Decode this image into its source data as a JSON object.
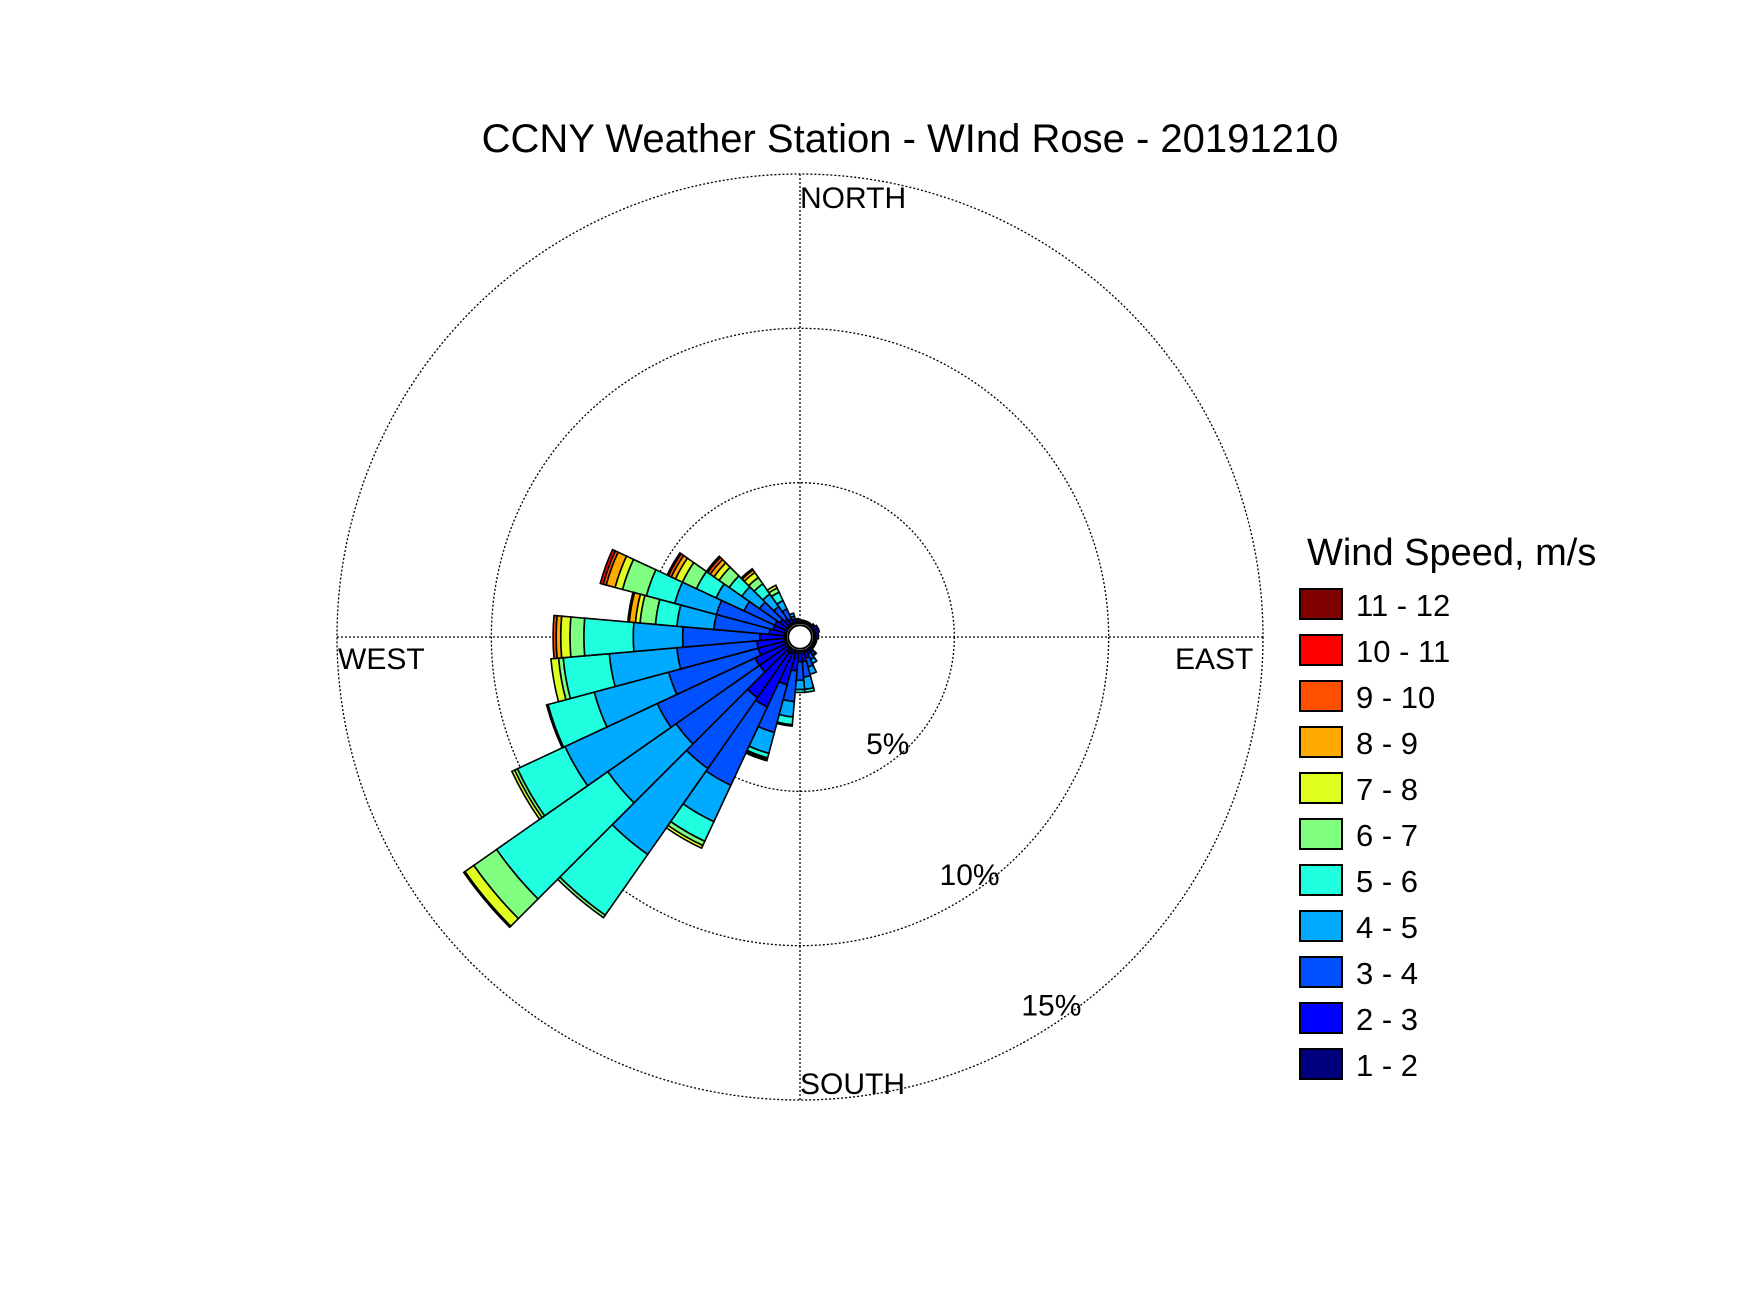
{
  "chart_data": {
    "type": "wind-rose",
    "title": "CCNY Weather Station - WInd Rose - 20191210",
    "direction_labels": {
      "north": "NORTH",
      "south": "SOUTH",
      "east": "EAST",
      "west": "WEST"
    },
    "rings": [
      {
        "value": 5,
        "label": "5%"
      },
      {
        "value": 10,
        "label": "10%"
      },
      {
        "value": 15,
        "label": "15%"
      }
    ],
    "rmax_percent": 15,
    "center_hole_percent": 0.45,
    "legend_title": "Wind Speed, m/s",
    "bins": [
      {
        "label": "1 - 2",
        "color": "#00007f"
      },
      {
        "label": "2 - 3",
        "color": "#0000ff"
      },
      {
        "label": "3 - 4",
        "color": "#0050ff"
      },
      {
        "label": "4 - 5",
        "color": "#00aaff"
      },
      {
        "label": "5 - 6",
        "color": "#20ffe0"
      },
      {
        "label": "6 - 7",
        "color": "#80ff80"
      },
      {
        "label": "7 - 8",
        "color": "#e0ff20"
      },
      {
        "label": "8 - 9",
        "color": "#ffaa00"
      },
      {
        "label": "9 - 10",
        "color": "#ff5000"
      },
      {
        "label": "10 - 11",
        "color": "#ff0000"
      },
      {
        "label": "11 - 12",
        "color": "#7f0000"
      }
    ],
    "direction_bin_width_deg": 10,
    "sectors": [
      {
        "direction_deg": 100,
        "cumulative_percent": [
          0.45,
          0.45,
          0.5,
          0.55
        ]
      },
      {
        "direction_deg": 110,
        "cumulative_percent": [
          0.45,
          0.45,
          0.5,
          0.55
        ]
      },
      {
        "direction_deg": 120,
        "cumulative_percent": [
          0.45,
          0.45,
          0.5,
          0.55
        ]
      },
      {
        "direction_deg": 130,
        "cumulative_percent": [
          0.45,
          0.45,
          0.5,
          0.55
        ]
      },
      {
        "direction_deg": 140,
        "cumulative_percent": [
          0.45,
          0.5,
          0.6,
          0.7,
          0.75
        ]
      },
      {
        "direction_deg": 150,
        "cumulative_percent": [
          0.45,
          0.5,
          0.6,
          0.8,
          0.95
        ]
      },
      {
        "direction_deg": 160,
        "cumulative_percent": [
          0.45,
          0.5,
          0.7,
          1.0,
          1.25
        ]
      },
      {
        "direction_deg": 170,
        "cumulative_percent": [
          0.45,
          0.5,
          0.8,
          1.3,
          1.7,
          1.8
        ]
      },
      {
        "direction_deg": 180,
        "cumulative_percent": [
          0.45,
          0.5,
          0.8,
          1.4,
          1.7,
          1.8
        ]
      },
      {
        "direction_deg": 190,
        "cumulative_percent": [
          0.45,
          0.5,
          1.1,
          2.1,
          2.6,
          2.85,
          2.9
        ]
      },
      {
        "direction_deg": 200,
        "cumulative_percent": [
          0.45,
          0.55,
          1.6,
          3.2,
          3.9,
          4.05,
          4.1,
          4.15
        ]
      },
      {
        "direction_deg": 210,
        "cumulative_percent": [
          0.45,
          0.6,
          2.5,
          5.3,
          6.6,
          7.3,
          7.45,
          7.55
        ]
      },
      {
        "direction_deg": 220,
        "cumulative_percent": [
          0.45,
          0.6,
          2.4,
          5.2,
          8.6,
          11.0,
          11.1
        ]
      },
      {
        "direction_deg": 230,
        "cumulative_percent": [
          0.45,
          0.5,
          1.6,
          4.9,
          7.6,
          12.0,
          12.9,
          13.25,
          13.3
        ]
      },
      {
        "direction_deg": 240,
        "cumulative_percent": [
          0.45,
          0.5,
          1.6,
          5.1,
          8.4,
          10.1,
          10.2,
          10.3
        ]
      },
      {
        "direction_deg": 250,
        "cumulative_percent": [
          0.45,
          0.5,
          1.4,
          4.4,
          6.9,
          8.45,
          8.5
        ]
      },
      {
        "direction_deg": 260,
        "cumulative_percent": [
          0.45,
          0.5,
          1.4,
          4.0,
          6.2,
          7.7,
          7.85,
          8.1
        ]
      },
      {
        "direction_deg": 270,
        "cumulative_percent": [
          0.45,
          0.5,
          1.3,
          3.8,
          5.4,
          7.0,
          7.45,
          7.75,
          7.9,
          8.0
        ]
      },
      {
        "direction_deg": 280,
        "cumulative_percent": [
          0.45,
          0.5,
          1.0,
          2.8,
          4.0,
          4.7,
          5.2,
          5.35,
          5.55,
          5.6
        ]
      },
      {
        "direction_deg": 290,
        "cumulative_percent": [
          0.45,
          0.5,
          0.9,
          2.8,
          4.2,
          5.15,
          5.95,
          6.2,
          6.5,
          6.6,
          6.7
        ]
      },
      {
        "direction_deg": 300,
        "cumulative_percent": [
          0.45,
          0.5,
          0.9,
          2.0,
          3.0,
          3.7,
          4.2,
          4.45,
          4.6,
          4.7,
          4.75
        ]
      },
      {
        "direction_deg": 310,
        "cumulative_percent": [
          0.45,
          0.5,
          0.8,
          1.6,
          2.3,
          2.8,
          3.2,
          3.4,
          3.55,
          3.65,
          3.7
        ]
      },
      {
        "direction_deg": 320,
        "cumulative_percent": [
          0.45,
          0.5,
          0.7,
          1.2,
          1.7,
          2.1,
          2.35,
          2.55,
          2.65,
          2.7
        ]
      },
      {
        "direction_deg": 330,
        "cumulative_percent": [
          0.45,
          0.5,
          0.65,
          1.0,
          1.3,
          1.6,
          1.75,
          1.85
        ]
      },
      {
        "direction_deg": 340,
        "cumulative_percent": [
          0.45,
          0.5,
          0.6,
          0.7,
          0.8
        ]
      },
      {
        "direction_deg": 350,
        "cumulative_percent": [
          0.45,
          0.5,
          0.55,
          0.6
        ]
      },
      {
        "direction_deg": 0,
        "cumulative_percent": [
          0.45,
          0.5,
          0.55
        ]
      },
      {
        "direction_deg": 10,
        "cumulative_percent": [
          0.45,
          0.5,
          0.55
        ]
      },
      {
        "direction_deg": 20,
        "cumulative_percent": [
          0.45,
          0.5,
          0.55
        ]
      },
      {
        "direction_deg": 30,
        "cumulative_percent": [
          0.45,
          0.5,
          0.55
        ]
      },
      {
        "direction_deg": 40,
        "cumulative_percent": [
          0.45,
          0.5,
          0.55
        ]
      },
      {
        "direction_deg": 50,
        "cumulative_percent": [
          0.45,
          0.5,
          0.6
        ]
      },
      {
        "direction_deg": 60,
        "cumulative_percent": [
          0.45,
          0.5,
          0.65
        ]
      },
      {
        "direction_deg": 70,
        "cumulative_percent": [
          0.45,
          0.5,
          0.65
        ]
      },
      {
        "direction_deg": 80,
        "cumulative_percent": [
          0.45,
          0.5,
          0.6
        ]
      },
      {
        "direction_deg": 90,
        "cumulative_percent": [
          0.45,
          0.5,
          0.6
        ]
      }
    ]
  }
}
